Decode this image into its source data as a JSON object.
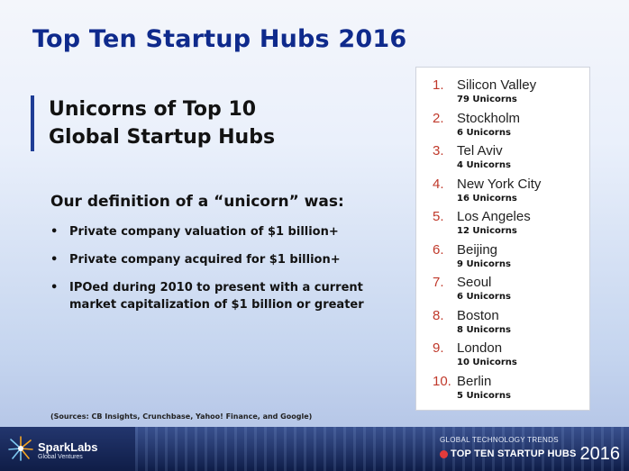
{
  "slide": {
    "title": "Top Ten Startup Hubs 2016",
    "subheading_line1": "Unicorns of Top 10",
    "subheading_line2": "Global Startup Hubs",
    "definition_heading": "Our definition of a “unicorn” was:",
    "bullet_glyph": "•",
    "bullets": [
      "Private company valuation of $1 billion+",
      "Private company acquired for $1 billion+",
      "IPOed during 2010 to present with a current market capitalization of $1 billion or greater"
    ],
    "sources": "(Sources: CB Insights, Crunchbase, Yahoo! Finance, and Google)"
  },
  "rankings": [
    {
      "rank": "1.",
      "city": "Silicon Valley",
      "unicorns": "79 Unicorns"
    },
    {
      "rank": "2.",
      "city": "Stockholm",
      "unicorns": "6 Unicorns"
    },
    {
      "rank": "3.",
      "city": "Tel Aviv",
      "unicorns": "4 Unicorns"
    },
    {
      "rank": "4.",
      "city": "New York City",
      "unicorns": "16 Unicorns"
    },
    {
      "rank": "5.",
      "city": "Los Angeles",
      "unicorns": "12 Unicorns"
    },
    {
      "rank": "6.",
      "city": "Beijing",
      "unicorns": "9 Unicorns"
    },
    {
      "rank": "7.",
      "city": "Seoul",
      "unicorns": "6 Unicorns"
    },
    {
      "rank": "8.",
      "city": "Boston",
      "unicorns": "8 Unicorns"
    },
    {
      "rank": "9.",
      "city": "London",
      "unicorns": "10 Unicorns"
    },
    {
      "rank": "10.",
      "city": "Berlin",
      "unicorns": "5 Unicorns"
    }
  ],
  "footer": {
    "logo_name": "SparkLabs",
    "logo_sub": "Global Ventures",
    "logo_icon": "starburst-icon",
    "report_top": "GLOBAL TECHNOLOGY TRENDS",
    "report_name": "TOP TEN STARTUP HUBS",
    "report_year": "2016"
  },
  "colors": {
    "title": "#0f2a8c",
    "rank_number": "#c0392b",
    "footer": "#1a2a5e"
  }
}
